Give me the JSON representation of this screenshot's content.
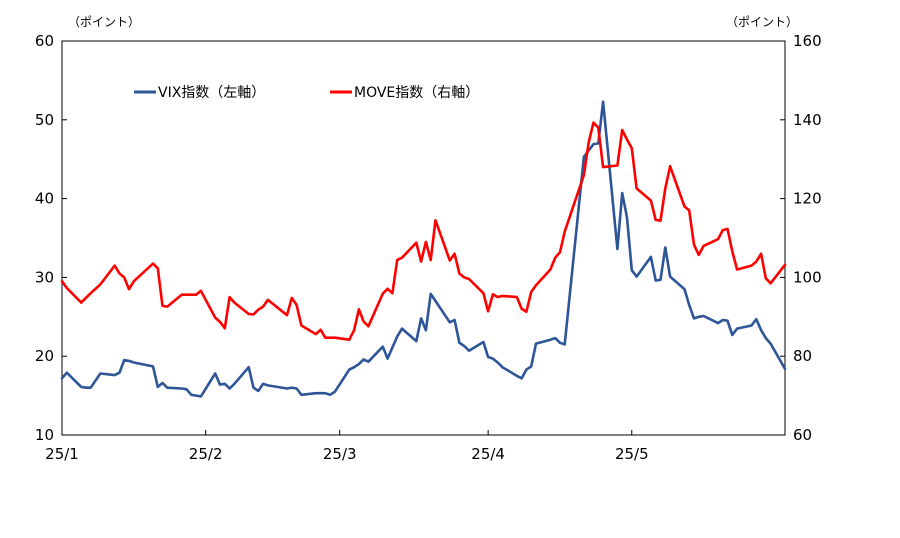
{
  "chart_data": {
    "type": "line",
    "left_axis_unit": "（ポイント）",
    "right_axis_unit": "（ポイント）",
    "ylim_left": [
      10,
      60
    ],
    "ylim_right": [
      60,
      160
    ],
    "left_ticks": [
      "10",
      "20",
      "30",
      "40",
      "50",
      "60"
    ],
    "right_ticks": [
      "60",
      "80",
      "100",
      "120",
      "140",
      "160"
    ],
    "x_ticks": [
      "25/1",
      "25/2",
      "25/3",
      "25/4",
      "25/5"
    ],
    "legend_position": "top-left",
    "grid": false,
    "series": [
      {
        "name": "VIX指数（左軸）",
        "axis": "left",
        "color": "#2e5597",
        "points": [
          [
            "2025-01-02",
            17.2
          ],
          [
            "2025-01-03",
            17.9
          ],
          [
            "2025-01-06",
            16.1
          ],
          [
            "2025-01-07",
            16.0
          ],
          [
            "2025-01-08",
            16.0
          ],
          [
            "2025-01-10",
            17.8
          ],
          [
            "2025-01-13",
            17.6
          ],
          [
            "2025-01-14",
            17.9
          ],
          [
            "2025-01-15",
            19.5
          ],
          [
            "2025-01-16",
            19.4
          ],
          [
            "2025-01-17",
            19.2
          ],
          [
            "2025-01-21",
            18.7
          ],
          [
            "2025-01-22",
            16.1
          ],
          [
            "2025-01-23",
            16.6
          ],
          [
            "2025-01-24",
            16.0
          ],
          [
            "2025-01-27",
            15.9
          ],
          [
            "2025-01-28",
            15.8
          ],
          [
            "2025-01-29",
            15.1
          ],
          [
            "2025-01-30",
            15.0
          ],
          [
            "2025-01-31",
            14.9
          ],
          [
            "2025-02-03",
            17.8
          ],
          [
            "2025-02-04",
            16.4
          ],
          [
            "2025-02-05",
            16.5
          ],
          [
            "2025-02-06",
            15.9
          ],
          [
            "2025-02-07",
            16.5
          ],
          [
            "2025-02-10",
            18.6
          ],
          [
            "2025-02-11",
            16.0
          ],
          [
            "2025-02-12",
            15.6
          ],
          [
            "2025-02-13",
            16.5
          ],
          [
            "2025-02-14",
            16.3
          ],
          [
            "2025-02-18",
            15.9
          ],
          [
            "2025-02-19",
            16.0
          ],
          [
            "2025-02-20",
            15.9
          ],
          [
            "2025-02-21",
            15.1
          ],
          [
            "2025-02-24",
            15.3
          ],
          [
            "2025-02-25",
            15.3
          ],
          [
            "2025-02-26",
            15.3
          ],
          [
            "2025-02-27",
            15.1
          ],
          [
            "2025-02-28",
            15.5
          ],
          [
            "2025-03-03",
            18.3
          ],
          [
            "2025-03-04",
            18.6
          ],
          [
            "2025-03-05",
            19.0
          ],
          [
            "2025-03-06",
            19.6
          ],
          [
            "2025-03-07",
            19.3
          ],
          [
            "2025-03-10",
            21.2
          ],
          [
            "2025-03-11",
            19.7
          ],
          [
            "2025-03-12",
            21.1
          ],
          [
            "2025-03-13",
            22.5
          ],
          [
            "2025-03-14",
            23.5
          ],
          [
            "2025-03-17",
            21.9
          ],
          [
            "2025-03-18",
            24.8
          ],
          [
            "2025-03-19",
            23.3
          ],
          [
            "2025-03-20",
            27.9
          ],
          [
            "2025-03-21",
            27.0
          ],
          [
            "2025-03-24",
            24.3
          ],
          [
            "2025-03-25",
            24.6
          ],
          [
            "2025-03-26",
            21.7
          ],
          [
            "2025-03-27",
            21.3
          ],
          [
            "2025-03-28",
            20.7
          ],
          [
            "2025-03-31",
            21.8
          ],
          [
            "2025-04-01",
            19.9
          ],
          [
            "2025-04-02",
            19.7
          ],
          [
            "2025-04-03",
            19.2
          ],
          [
            "2025-04-04",
            18.6
          ],
          [
            "2025-04-07",
            17.5
          ],
          [
            "2025-04-08",
            17.2
          ],
          [
            "2025-04-09",
            18.3
          ],
          [
            "2025-04-10",
            18.7
          ],
          [
            "2025-04-11",
            21.6
          ],
          [
            "2025-04-14",
            22.1
          ],
          [
            "2025-04-15",
            22.3
          ],
          [
            "2025-04-16",
            21.7
          ],
          [
            "2025-04-17",
            21.5
          ],
          [
            "2025-04-21",
            45.3
          ],
          [
            "2025-04-22",
            46.1
          ],
          [
            "2025-04-23",
            46.9
          ],
          [
            "2025-04-24",
            47.0
          ],
          [
            "2025-04-25",
            52.3
          ],
          [
            "2025-04-28",
            33.6
          ],
          [
            "2025-04-29",
            40.7
          ],
          [
            "2025-04-30",
            37.6
          ],
          [
            "2025-05-01",
            30.9
          ],
          [
            "2025-05-02",
            30.1
          ],
          [
            "2025-05-05",
            32.6
          ],
          [
            "2025-05-06",
            29.6
          ],
          [
            "2025-05-07",
            29.7
          ],
          [
            "2025-05-08",
            33.8
          ],
          [
            "2025-05-09",
            30.1
          ],
          [
            "2025-05-12",
            28.5
          ],
          [
            "2025-05-13",
            26.5
          ],
          [
            "2025-05-14",
            24.8
          ],
          [
            "2025-05-15",
            25.0
          ],
          [
            "2025-05-16",
            25.1
          ],
          [
            "2025-05-19",
            24.2
          ],
          [
            "2025-05-20",
            24.6
          ],
          [
            "2025-05-21",
            24.5
          ],
          [
            "2025-05-22",
            22.7
          ],
          [
            "2025-05-23",
            23.5
          ],
          [
            "2025-05-26",
            23.9
          ],
          [
            "2025-05-27",
            24.7
          ],
          [
            "2025-05-28",
            23.3
          ],
          [
            "2025-05-29",
            22.3
          ],
          [
            "2025-05-30",
            21.6
          ],
          [
            "2025-06-02",
            18.4
          ]
        ]
      },
      {
        "name": "MOVE指数（右軸）",
        "axis": "right",
        "color": "#ff0000",
        "points": [
          [
            "2025-01-02",
            99.0
          ],
          [
            "2025-01-03",
            97.3
          ],
          [
            "2025-01-06",
            93.6
          ],
          [
            "2025-01-07",
            94.8
          ],
          [
            "2025-01-08",
            96.0
          ],
          [
            "2025-01-10",
            98.2
          ],
          [
            "2025-01-13",
            103.0
          ],
          [
            "2025-01-14",
            101.0
          ],
          [
            "2025-01-15",
            100.0
          ],
          [
            "2025-01-16",
            97.0
          ],
          [
            "2025-01-17",
            99.0
          ],
          [
            "2025-01-21",
            103.5
          ],
          [
            "2025-01-22",
            102.3
          ],
          [
            "2025-01-23",
            92.8
          ],
          [
            "2025-01-24",
            92.6
          ],
          [
            "2025-01-27",
            95.6
          ],
          [
            "2025-01-28",
            95.6
          ],
          [
            "2025-01-29",
            95.6
          ],
          [
            "2025-01-30",
            95.6
          ],
          [
            "2025-01-31",
            96.6
          ],
          [
            "2025-02-03",
            89.8
          ],
          [
            "2025-02-04",
            88.7
          ],
          [
            "2025-02-05",
            87.1
          ],
          [
            "2025-02-06",
            95.0
          ],
          [
            "2025-02-07",
            93.6
          ],
          [
            "2025-02-10",
            90.7
          ],
          [
            "2025-02-11",
            90.6
          ],
          [
            "2025-02-12",
            91.8
          ],
          [
            "2025-02-13",
            92.6
          ],
          [
            "2025-02-14",
            94.3
          ],
          [
            "2025-02-18",
            90.4
          ],
          [
            "2025-02-19",
            94.8
          ],
          [
            "2025-02-20",
            93.0
          ],
          [
            "2025-02-21",
            87.8
          ],
          [
            "2025-02-24",
            85.6
          ],
          [
            "2025-02-25",
            86.7
          ],
          [
            "2025-02-26",
            84.7
          ],
          [
            "2025-02-27",
            84.7
          ],
          [
            "2025-02-28",
            84.7
          ],
          [
            "2025-03-03",
            84.2
          ],
          [
            "2025-03-04",
            86.6
          ],
          [
            "2025-03-05",
            91.9
          ],
          [
            "2025-03-06",
            88.8
          ],
          [
            "2025-03-07",
            87.6
          ],
          [
            "2025-03-10",
            95.9
          ],
          [
            "2025-03-11",
            97.1
          ],
          [
            "2025-03-12",
            96.0
          ],
          [
            "2025-03-13",
            104.4
          ],
          [
            "2025-03-14",
            105.0
          ],
          [
            "2025-03-17",
            108.8
          ],
          [
            "2025-03-18",
            104.0
          ],
          [
            "2025-03-19",
            109.0
          ],
          [
            "2025-03-20",
            104.4
          ],
          [
            "2025-03-21",
            114.5
          ],
          [
            "2025-03-24",
            104.3
          ],
          [
            "2025-03-25",
            106.0
          ],
          [
            "2025-03-26",
            101.0
          ],
          [
            "2025-03-27",
            100.0
          ],
          [
            "2025-03-28",
            99.6
          ],
          [
            "2025-03-31",
            96.0
          ],
          [
            "2025-04-01",
            91.4
          ],
          [
            "2025-04-02",
            95.7
          ],
          [
            "2025-04-03",
            95.0
          ],
          [
            "2025-04-04",
            95.3
          ],
          [
            "2025-04-07",
            95.0
          ],
          [
            "2025-04-08",
            92.0
          ],
          [
            "2025-04-09",
            91.3
          ],
          [
            "2025-04-10",
            96.3
          ],
          [
            "2025-04-11",
            98.0
          ],
          [
            "2025-04-14",
            102.0
          ],
          [
            "2025-04-15",
            105.0
          ],
          [
            "2025-04-16",
            106.4
          ],
          [
            "2025-04-17",
            111.6
          ],
          [
            "2025-04-21",
            126.0
          ],
          [
            "2025-04-22",
            134.3
          ],
          [
            "2025-04-23",
            139.3
          ],
          [
            "2025-04-24",
            138.0
          ],
          [
            "2025-04-25",
            128.0
          ],
          [
            "2025-04-28",
            128.4
          ],
          [
            "2025-04-29",
            137.4
          ],
          [
            "2025-04-30",
            135.0
          ],
          [
            "2025-05-01",
            132.8
          ],
          [
            "2025-05-02",
            122.6
          ],
          [
            "2025-05-05",
            119.5
          ],
          [
            "2025-05-06",
            114.6
          ],
          [
            "2025-05-07",
            114.4
          ],
          [
            "2025-05-08",
            122.6
          ],
          [
            "2025-05-09",
            128.2
          ],
          [
            "2025-05-12",
            118.0
          ],
          [
            "2025-05-13",
            117.0
          ],
          [
            "2025-05-14",
            108.3
          ],
          [
            "2025-05-15",
            105.7
          ],
          [
            "2025-05-16",
            108.0
          ],
          [
            "2025-05-19",
            109.7
          ],
          [
            "2025-05-20",
            112.0
          ],
          [
            "2025-05-21",
            112.3
          ],
          [
            "2025-05-22",
            106.6
          ],
          [
            "2025-05-23",
            102.0
          ],
          [
            "2025-05-26",
            103.0
          ],
          [
            "2025-05-27",
            104.0
          ],
          [
            "2025-05-28",
            106.0
          ],
          [
            "2025-05-29",
            99.8
          ],
          [
            "2025-05-30",
            98.5
          ],
          [
            "2025-06-02",
            103.2
          ]
        ]
      }
    ]
  }
}
